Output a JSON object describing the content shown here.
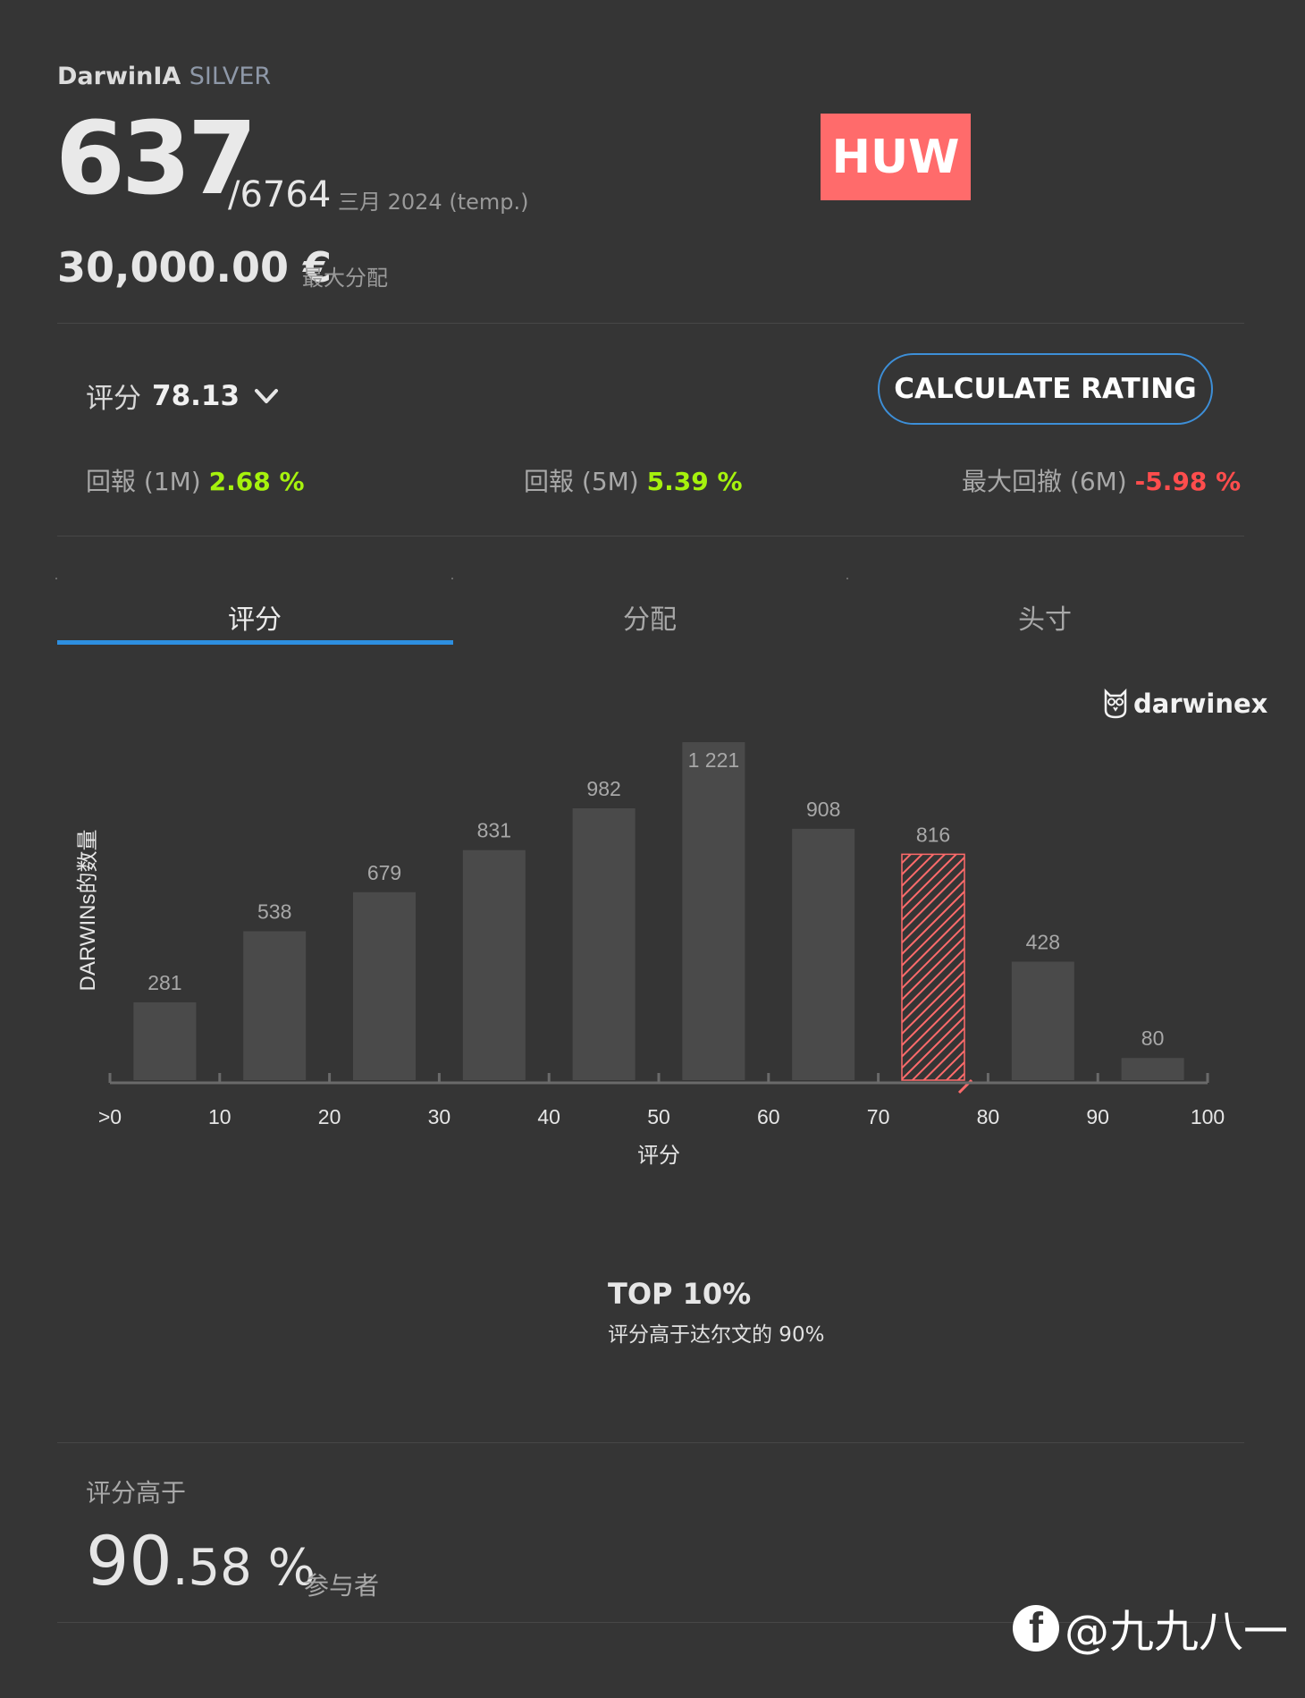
{
  "header": {
    "brand": "DarwinIA",
    "tier": "SILVER",
    "rank": "637",
    "rank_total": "/6764",
    "period": "三月 2024 (temp.)",
    "allocation": "30,000.00 €",
    "allocation_label": "最大分配",
    "badge": "HUW"
  },
  "rating": {
    "label": "评分",
    "value": "78.13",
    "calculate_button": "CALCULATE RATING"
  },
  "stats": [
    {
      "label": "回報 (1M)",
      "value": "2.68 %",
      "tone": "positive"
    },
    {
      "label": "回報 (5M)",
      "value": "5.39 %",
      "tone": "positive"
    },
    {
      "label": "最大回撤 (6M)",
      "value": "-5.98 %",
      "tone": "negative"
    }
  ],
  "tabs": [
    {
      "label": "评分",
      "active": true
    },
    {
      "label": "分配",
      "active": false
    },
    {
      "label": "头寸",
      "active": false
    }
  ],
  "logo": {
    "text": "darwinex",
    "icon": "owl-icon"
  },
  "chart_data": {
    "type": "bar",
    "categories": [
      ">0-10",
      "10-20",
      "20-30",
      "30-40",
      "40-50",
      "50-60",
      "60-70",
      "70-80",
      "80-90",
      "90-100"
    ],
    "values": [
      281,
      538,
      679,
      831,
      982,
      1221,
      908,
      816,
      428,
      80
    ],
    "value_labels": [
      "281",
      "538",
      "679",
      "831",
      "982",
      "1 221",
      "908",
      "816",
      "428",
      "80"
    ],
    "highlight_index": 7,
    "x_ticks": [
      ">0",
      "10",
      "20",
      "30",
      "40",
      "50",
      "60",
      "70",
      "80",
      "90",
      "100"
    ],
    "xlabel": "评分",
    "ylabel": "DARWINs的数量",
    "ylim": [
      0,
      1221
    ],
    "colors": {
      "bar": "#4a4a4a",
      "highlight": "#ff6b6b",
      "label": "#a8a8a8",
      "axis": "#6a6a6a"
    }
  },
  "summary": {
    "top": "TOP 10%",
    "top_sub": "评分高于达尔文的 90%"
  },
  "higher": {
    "label": "评分高于",
    "pct_int": "90",
    "pct_dec": ".58 %",
    "participants_label": "参与者"
  },
  "watermark": {
    "text": "@九九八一",
    "icon": "facebook-icon",
    "icon_glyph": "f"
  }
}
